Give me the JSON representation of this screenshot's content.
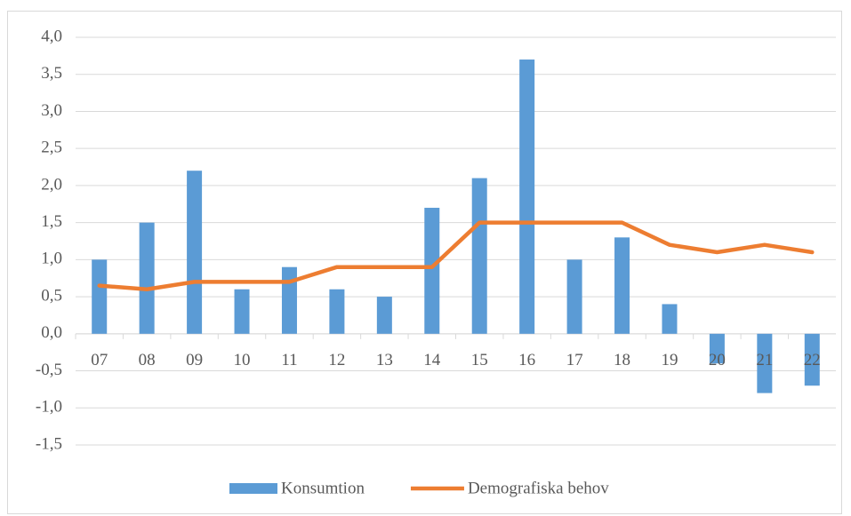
{
  "chart_data": {
    "type": "bar-line",
    "categories": [
      "07",
      "08",
      "09",
      "10",
      "11",
      "12",
      "13",
      "14",
      "15",
      "16",
      "17",
      "18",
      "19",
      "20",
      "21",
      "22"
    ],
    "series": [
      {
        "name": "Konsumtion",
        "type": "bar",
        "color": "#5b9bd5",
        "values": [
          1.0,
          1.5,
          2.2,
          0.6,
          0.9,
          0.6,
          0.5,
          1.7,
          2.1,
          3.7,
          1.0,
          1.3,
          0.4,
          -0.4,
          -0.8,
          -0.7
        ]
      },
      {
        "name": "Demografiska behov",
        "type": "line",
        "color": "#ed7d31",
        "values": [
          0.65,
          0.6,
          0.7,
          0.7,
          0.7,
          0.9,
          0.9,
          0.9,
          1.5,
          1.5,
          1.5,
          1.5,
          1.2,
          1.1,
          1.2,
          1.1
        ]
      }
    ],
    "ylim": [
      -1.5,
      4.0
    ],
    "yticks": [
      {
        "value": -1.5,
        "label": "-1,5"
      },
      {
        "value": -1.0,
        "label": "-1,0"
      },
      {
        "value": -0.5,
        "label": "-0,5"
      },
      {
        "value": 0,
        "label": "0,0"
      },
      {
        "value": 0.5,
        "label": "0,5"
      },
      {
        "value": 1.0,
        "label": "1,0"
      },
      {
        "value": 1.5,
        "label": "1,5"
      },
      {
        "value": 2.0,
        "label": "2,0"
      },
      {
        "value": 2.5,
        "label": "2,5"
      },
      {
        "value": 3.0,
        "label": "3,0"
      },
      {
        "value": 3.5,
        "label": "3,5"
      },
      {
        "value": 4.0,
        "label": "4,0"
      }
    ],
    "grid": true,
    "legend": "bottom"
  }
}
